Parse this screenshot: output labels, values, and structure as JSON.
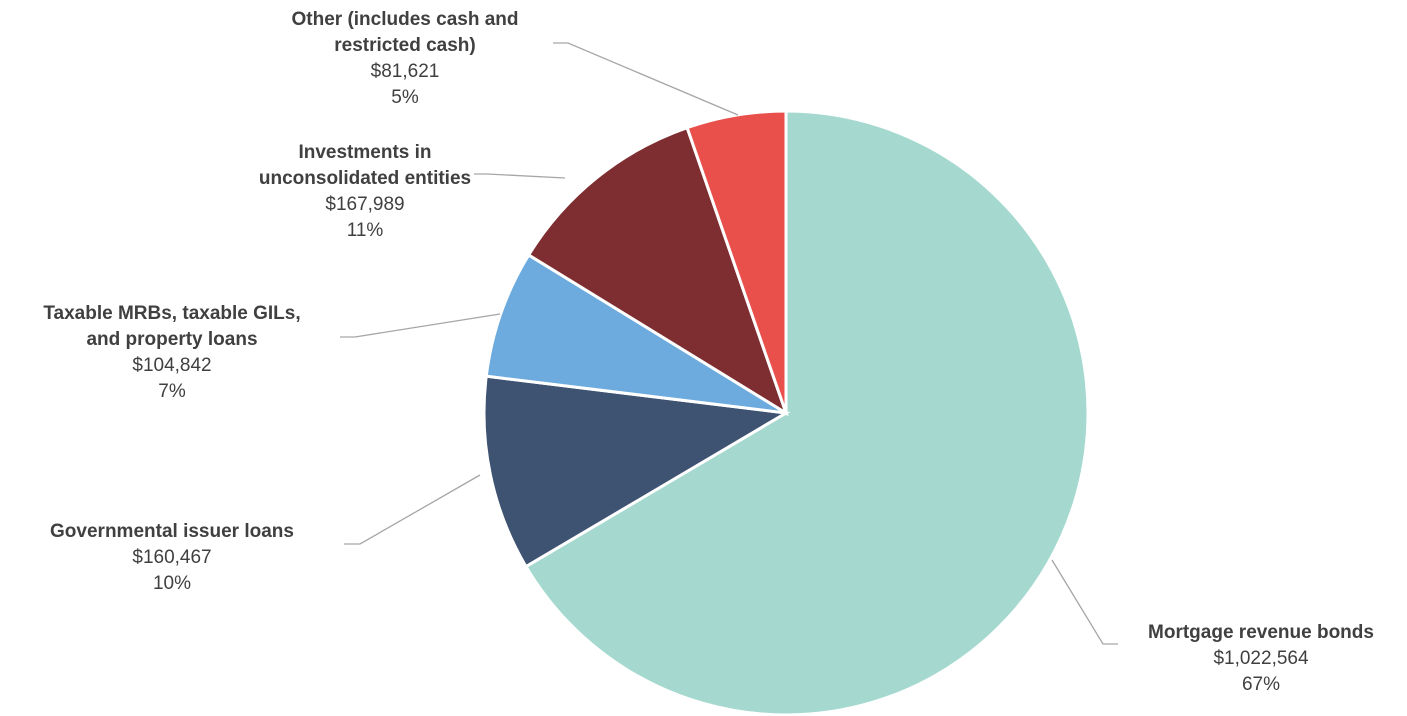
{
  "chart_data": {
    "type": "pie",
    "title": "",
    "start_angle_deg": 0,
    "direction": "clockwise",
    "slices": [
      {
        "name_lines": [
          "Mortgage revenue bonds"
        ],
        "amount": "$1,022,564",
        "value": 1022564,
        "percent": "67%",
        "color": "#a5d9cf"
      },
      {
        "name_lines": [
          "Governmental issuer loans"
        ],
        "amount": "$160,467",
        "value": 160467,
        "percent": "10%",
        "color": "#3e5272"
      },
      {
        "name_lines": [
          "Taxable MRBs, taxable GILs,",
          "and property loans"
        ],
        "amount": "$104,842",
        "value": 104842,
        "percent": "7%",
        "color": "#6dabde"
      },
      {
        "name_lines": [
          "Investments in",
          "unconsolidated entities"
        ],
        "amount": "$167,989",
        "value": 167989,
        "percent": "11%",
        "color": "#7e2e30"
      },
      {
        "name_lines": [
          "Other (includes cash and",
          "restricted cash)"
        ],
        "amount": "$81,621",
        "value": 81621,
        "percent": "5%",
        "color": "#e9504c"
      }
    ]
  }
}
